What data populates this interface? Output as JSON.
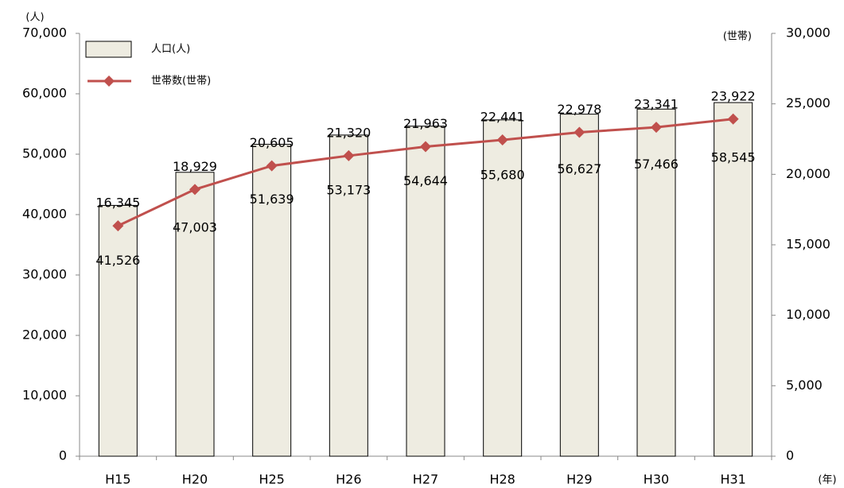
{
  "chart_data": {
    "type": "bar_line",
    "categories": [
      "H15",
      "H20",
      "H25",
      "H26",
      "H27",
      "H28",
      "H29",
      "H30",
      "H31"
    ],
    "series": [
      {
        "name": "人口(人)",
        "type": "bar",
        "color": "#eeece1",
        "values": [
          41526,
          47003,
          51639,
          53173,
          54644,
          55680,
          56627,
          57466,
          58545
        ],
        "value_labels": [
          "41,526",
          "47,003",
          "51,639",
          "53,173",
          "54,644",
          "55,680",
          "56,627",
          "57,466",
          "58,545"
        ]
      },
      {
        "name": "世帯数(世帯)",
        "type": "line",
        "axis": "y2",
        "color": "#c0504d",
        "values": [
          16345,
          18929,
          20605,
          21320,
          21963,
          22441,
          22978,
          23341,
          23922
        ],
        "value_labels": [
          "16,345",
          "18,929",
          "20,605",
          "21,320",
          "21,963",
          "22,441",
          "22,978",
          "23,341",
          "23,922"
        ]
      }
    ],
    "ylabel": "(人)",
    "y2label": "(世帯)",
    "xlabel": "(年)",
    "ylim": [
      0,
      70000
    ],
    "yticks": [
      0,
      {
        "value": 10000,
        "label": "10,000"
      },
      {
        "value": 20000,
        "label": "20,000"
      },
      {
        "value": 30000,
        "label": "30,000"
      },
      {
        "value": 40000,
        "label": "40,000"
      },
      {
        "value": 50000,
        "label": "50,000"
      },
      {
        "value": 60000,
        "label": "60,000"
      },
      {
        "value": 70000,
        "label": "70,000"
      }
    ],
    "y2lim": [
      0,
      30000
    ],
    "y2ticks": [
      0,
      {
        "value": 5000,
        "label": "5,000"
      },
      {
        "value": 10000,
        "label": "10,000"
      },
      {
        "value": 15000,
        "label": "15,000"
      },
      {
        "value": 20000,
        "label": "20,000"
      },
      {
        "value": 25000,
        "label": "25,000"
      },
      {
        "value": 30000,
        "label": "30,000"
      }
    ],
    "legend": "upper left"
  }
}
